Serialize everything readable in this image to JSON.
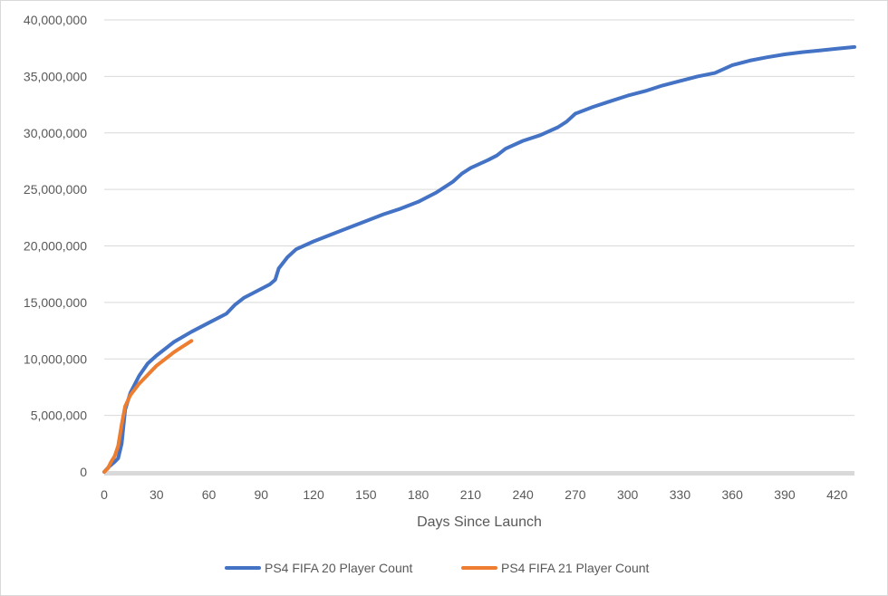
{
  "chart_data": {
    "type": "line",
    "title": "",
    "xlabel": "Days Since Launch",
    "ylabel": "",
    "xlim": [
      0,
      430
    ],
    "ylim": [
      0,
      40000000
    ],
    "x_ticks": [
      "0",
      "30",
      "60",
      "90",
      "120",
      "150",
      "180",
      "210",
      "240",
      "270",
      "300",
      "330",
      "360",
      "390",
      "420"
    ],
    "y_ticks": [
      "0",
      "5,000,000",
      "10,000,000",
      "15,000,000",
      "20,000,000",
      "25,000,000",
      "30,000,000",
      "35,000,000",
      "40,000,000"
    ],
    "grid": "horizontal",
    "legend_position": "bottom",
    "series": [
      {
        "name": "PS4 FIFA 20 Player Count",
        "color": "#4472c4",
        "points": [
          [
            0,
            0
          ],
          [
            3,
            500000
          ],
          [
            6,
            900000
          ],
          [
            8,
            1200000
          ],
          [
            10,
            2500000
          ],
          [
            12,
            5500000
          ],
          [
            15,
            7000000
          ],
          [
            20,
            8500000
          ],
          [
            25,
            9600000
          ],
          [
            30,
            10300000
          ],
          [
            40,
            11500000
          ],
          [
            50,
            12400000
          ],
          [
            60,
            13200000
          ],
          [
            70,
            14000000
          ],
          [
            75,
            14800000
          ],
          [
            80,
            15400000
          ],
          [
            85,
            15800000
          ],
          [
            90,
            16200000
          ],
          [
            95,
            16600000
          ],
          [
            98,
            17000000
          ],
          [
            100,
            18000000
          ],
          [
            105,
            19000000
          ],
          [
            110,
            19700000
          ],
          [
            120,
            20400000
          ],
          [
            130,
            21000000
          ],
          [
            140,
            21600000
          ],
          [
            150,
            22200000
          ],
          [
            160,
            22800000
          ],
          [
            170,
            23300000
          ],
          [
            180,
            23900000
          ],
          [
            190,
            24700000
          ],
          [
            200,
            25700000
          ],
          [
            205,
            26400000
          ],
          [
            210,
            26900000
          ],
          [
            220,
            27600000
          ],
          [
            225,
            28000000
          ],
          [
            230,
            28600000
          ],
          [
            240,
            29300000
          ],
          [
            250,
            29800000
          ],
          [
            260,
            30500000
          ],
          [
            265,
            31000000
          ],
          [
            270,
            31700000
          ],
          [
            280,
            32300000
          ],
          [
            290,
            32800000
          ],
          [
            300,
            33300000
          ],
          [
            310,
            33700000
          ],
          [
            320,
            34200000
          ],
          [
            330,
            34600000
          ],
          [
            340,
            35000000
          ],
          [
            350,
            35300000
          ],
          [
            360,
            36000000
          ],
          [
            370,
            36400000
          ],
          [
            380,
            36700000
          ],
          [
            390,
            36950000
          ],
          [
            400,
            37150000
          ],
          [
            410,
            37300000
          ],
          [
            420,
            37450000
          ],
          [
            430,
            37600000
          ]
        ]
      },
      {
        "name": "PS4 FIFA 21 Player Count",
        "color": "#ed7d31",
        "points": [
          [
            0,
            0
          ],
          [
            2,
            300000
          ],
          [
            4,
            900000
          ],
          [
            6,
            1400000
          ],
          [
            8,
            2300000
          ],
          [
            10,
            4200000
          ],
          [
            12,
            5800000
          ],
          [
            15,
            6800000
          ],
          [
            20,
            7800000
          ],
          [
            25,
            8600000
          ],
          [
            30,
            9400000
          ],
          [
            35,
            10000000
          ],
          [
            40,
            10600000
          ],
          [
            45,
            11100000
          ],
          [
            50,
            11600000
          ]
        ]
      }
    ]
  }
}
